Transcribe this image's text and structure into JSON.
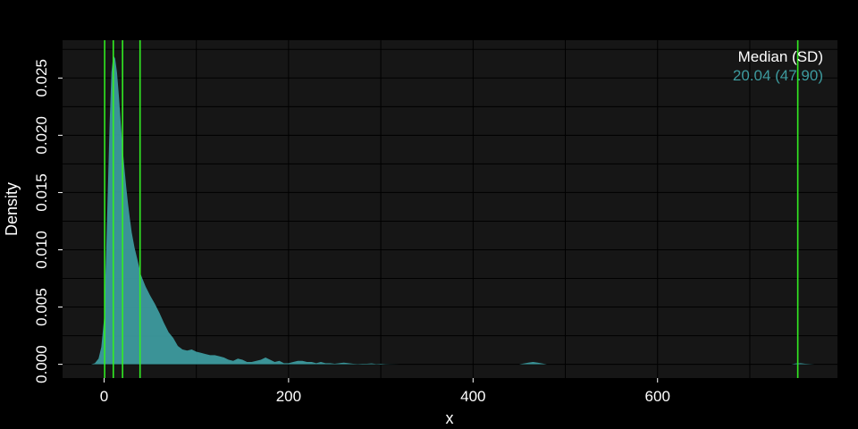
{
  "chart_data": {
    "type": "area",
    "xlabel": "x",
    "ylabel": "Density",
    "xlim": [
      -45,
      795
    ],
    "ylim": [
      -0.0012,
      0.0283
    ],
    "x_ticks": [
      0,
      200,
      400,
      600
    ],
    "x_tick_labels": [
      "0",
      "200",
      "400",
      "600"
    ],
    "y_ticks": [
      0.0,
      0.005,
      0.01,
      0.015,
      0.02,
      0.025
    ],
    "y_tick_labels": [
      "0.000",
      "0.005",
      "0.010",
      "0.015",
      "0.020",
      "0.025"
    ],
    "grid": true,
    "legend": {
      "position": "top-right",
      "header": "Median (SD)",
      "value": "20.04 (47.90)"
    },
    "vertical_lines": [
      0.6,
      10,
      20.04,
      39,
      752
    ],
    "series": [
      {
        "x": [
          -14,
          -10,
          -6,
          -3,
          0,
          2,
          4,
          6,
          8,
          10,
          12,
          14,
          16,
          18,
          20,
          22,
          24,
          26,
          28,
          30,
          33,
          36,
          40,
          45,
          50,
          55,
          60,
          65,
          70,
          75,
          80,
          85,
          90,
          95,
          100,
          105,
          110,
          115,
          120,
          125,
          130,
          135,
          140,
          145,
          150,
          155,
          160,
          165,
          170,
          175,
          180,
          185,
          190,
          195,
          200,
          205,
          210,
          215,
          220,
          225,
          230,
          235,
          240,
          245,
          250,
          255,
          260,
          265,
          270,
          275,
          280,
          285,
          290,
          295,
          300,
          305,
          310,
          320,
          340,
          380,
          420,
          450,
          460,
          465,
          470,
          480,
          520,
          600,
          700,
          745,
          750,
          755,
          760,
          770
        ],
        "y": [
          0,
          0.0001,
          0.0005,
          0.0015,
          0.004,
          0.009,
          0.015,
          0.021,
          0.0255,
          0.027,
          0.0267,
          0.0255,
          0.0235,
          0.0212,
          0.019,
          0.0172,
          0.0155,
          0.014,
          0.0127,
          0.0115,
          0.0102,
          0.0092,
          0.0078,
          0.0068,
          0.006,
          0.0053,
          0.0045,
          0.0036,
          0.0028,
          0.0023,
          0.0016,
          0.0013,
          0.0012,
          0.0013,
          0.0011,
          0.001,
          0.0009,
          0.0008,
          0.0008,
          0.0007,
          0.0006,
          0.0004,
          0.0003,
          0.0005,
          0.0004,
          0.0002,
          0.0002,
          0.0003,
          0.0004,
          0.0006,
          0.0004,
          0.0002,
          0.0003,
          0.0001,
          0.0001,
          0.0002,
          0.0003,
          0.0003,
          0.0002,
          0.0002,
          0.0001,
          0.0002,
          0.0001,
          0.0001,
          5e-05,
          0.0001,
          0.00015,
          0.0001,
          5e-05,
          3e-05,
          5e-05,
          5e-05,
          8e-05,
          3e-05,
          5e-05,
          2e-05,
          1e-05,
          0,
          0,
          0,
          0,
          0,
          0.00015,
          0.0002,
          0.00015,
          0,
          0,
          0,
          0,
          0,
          8e-05,
          0.0001,
          5e-05,
          0
        ]
      }
    ],
    "colors": {
      "page_background": "#000000",
      "panel_background": "#161616",
      "grid": "#000000",
      "fill": "#3d9a9e",
      "vline": "#33ee22",
      "legend_value": "#3d9a9e",
      "text": "#ffffff"
    }
  }
}
